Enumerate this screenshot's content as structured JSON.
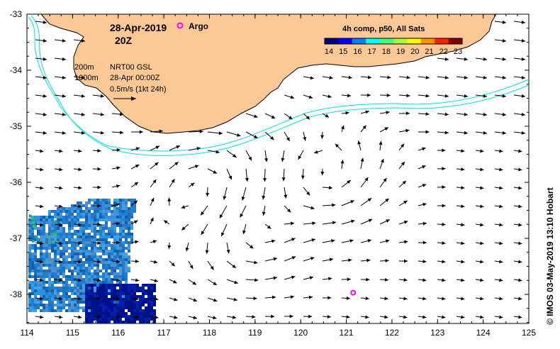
{
  "title": {
    "date": "28-Apr-2019",
    "time": "20Z"
  },
  "legend": {
    "argo_label": "Argo",
    "argo_color": "#ff00ff",
    "contour_200": "200m",
    "contour_1000": "1000m",
    "product": "NRT00 GSL",
    "product_time": "28-Apr 00:00Z",
    "scale_label": "0.5m/s (1kt 24h)"
  },
  "colorbar": {
    "title": "4h comp, p50, All Sats",
    "labels": [
      "14",
      "15",
      "16",
      "17",
      "18",
      "19",
      "20",
      "21",
      "22",
      "23"
    ],
    "colors": [
      "#00007f",
      "#0000ff",
      "#0080ff",
      "#00ffff",
      "#40ff80",
      "#a0ff40",
      "#ffff00",
      "#ff9000",
      "#ff2000",
      "#800000"
    ]
  },
  "axes": {
    "x_labels": [
      "114",
      "115",
      "116",
      "117",
      "118",
      "119",
      "120",
      "121",
      "122",
      "123",
      "124",
      "125"
    ],
    "y_labels": [
      "-33",
      "-34",
      "-35",
      "-36",
      "-37",
      "-38"
    ],
    "x_range": [
      114,
      125
    ],
    "y_range": [
      -38.5,
      -33
    ]
  },
  "credit": "© IMOS 03-May-2019 13:10 Hobart",
  "argo_float": {
    "lon": 121.15,
    "lat": -37.97
  },
  "colors": {
    "land": "#fcc896",
    "shelf_contour": "#00e0e0",
    "background": "#ffffff"
  }
}
